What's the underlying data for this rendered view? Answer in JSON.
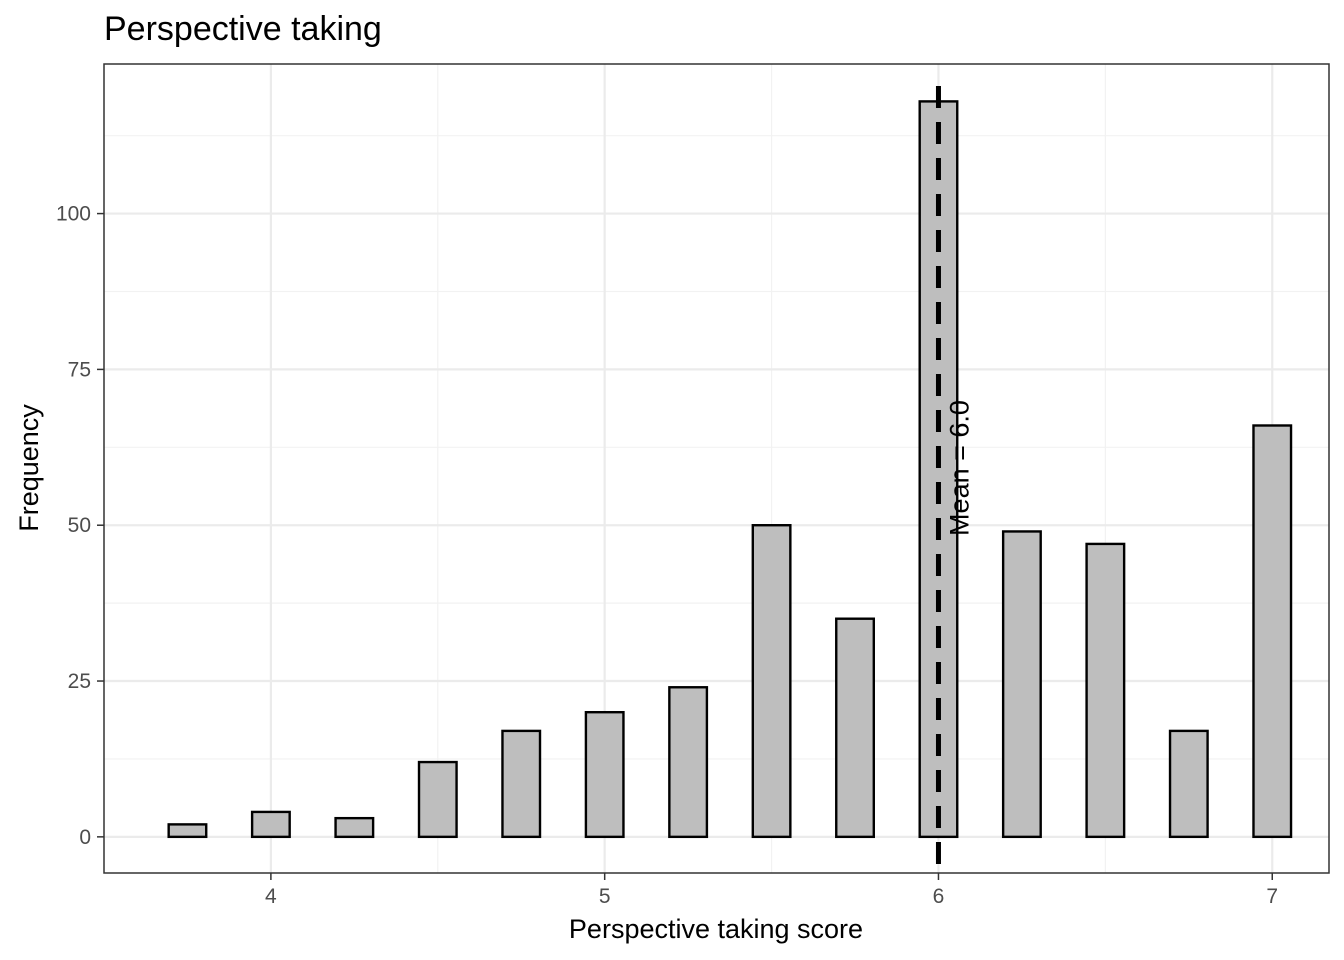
{
  "chart_data": {
    "type": "bar",
    "title": "Perspective taking",
    "xlabel": "Perspective taking score",
    "ylabel": "Frequency",
    "xlim": [
      3.5,
      7.17
    ],
    "ylim": [
      -5.8,
      124
    ],
    "x_ticks": [
      4,
      5,
      6,
      7
    ],
    "x_tick_labels": [
      "4",
      "5",
      "6",
      "7"
    ],
    "y_ticks": [
      0,
      25,
      50,
      75,
      100
    ],
    "y_tick_labels": [
      "0",
      "25",
      "50",
      "75",
      "100"
    ],
    "bin_width": 0.1125,
    "bar_fill": "#bebebe",
    "bar_stroke": "#000000",
    "bins": [
      {
        "x": 3.75,
        "count": 2
      },
      {
        "x": 3.86,
        "count": 0
      },
      {
        "x": 4.0,
        "count": 4
      },
      {
        "x": 4.1,
        "count": 0
      },
      {
        "x": 4.25,
        "count": 3
      },
      {
        "x": 4.36,
        "count": 0
      },
      {
        "x": 4.5,
        "count": 12
      },
      {
        "x": 4.61,
        "count": 0
      },
      {
        "x": 4.75,
        "count": 17
      },
      {
        "x": 4.86,
        "count": 0
      },
      {
        "x": 5.0,
        "count": 20
      },
      {
        "x": 5.1,
        "count": 0
      },
      {
        "x": 5.25,
        "count": 24
      },
      {
        "x": 5.36,
        "count": 0
      },
      {
        "x": 5.5,
        "count": 50
      },
      {
        "x": 5.61,
        "count": 0
      },
      {
        "x": 5.75,
        "count": 35
      },
      {
        "x": 5.86,
        "count": 0
      },
      {
        "x": 6.0,
        "count": 118
      },
      {
        "x": 6.1,
        "count": 0
      },
      {
        "x": 6.25,
        "count": 49
      },
      {
        "x": 6.36,
        "count": 0
      },
      {
        "x": 6.5,
        "count": 47
      },
      {
        "x": 6.61,
        "count": 0
      },
      {
        "x": 6.75,
        "count": 17
      },
      {
        "x": 6.86,
        "count": 0
      },
      {
        "x": 7.0,
        "count": 66
      }
    ],
    "mean_line": {
      "x": 6.0,
      "label": "Mean = 6.0",
      "style": "dashed"
    },
    "grid": true,
    "theme": "bw"
  }
}
